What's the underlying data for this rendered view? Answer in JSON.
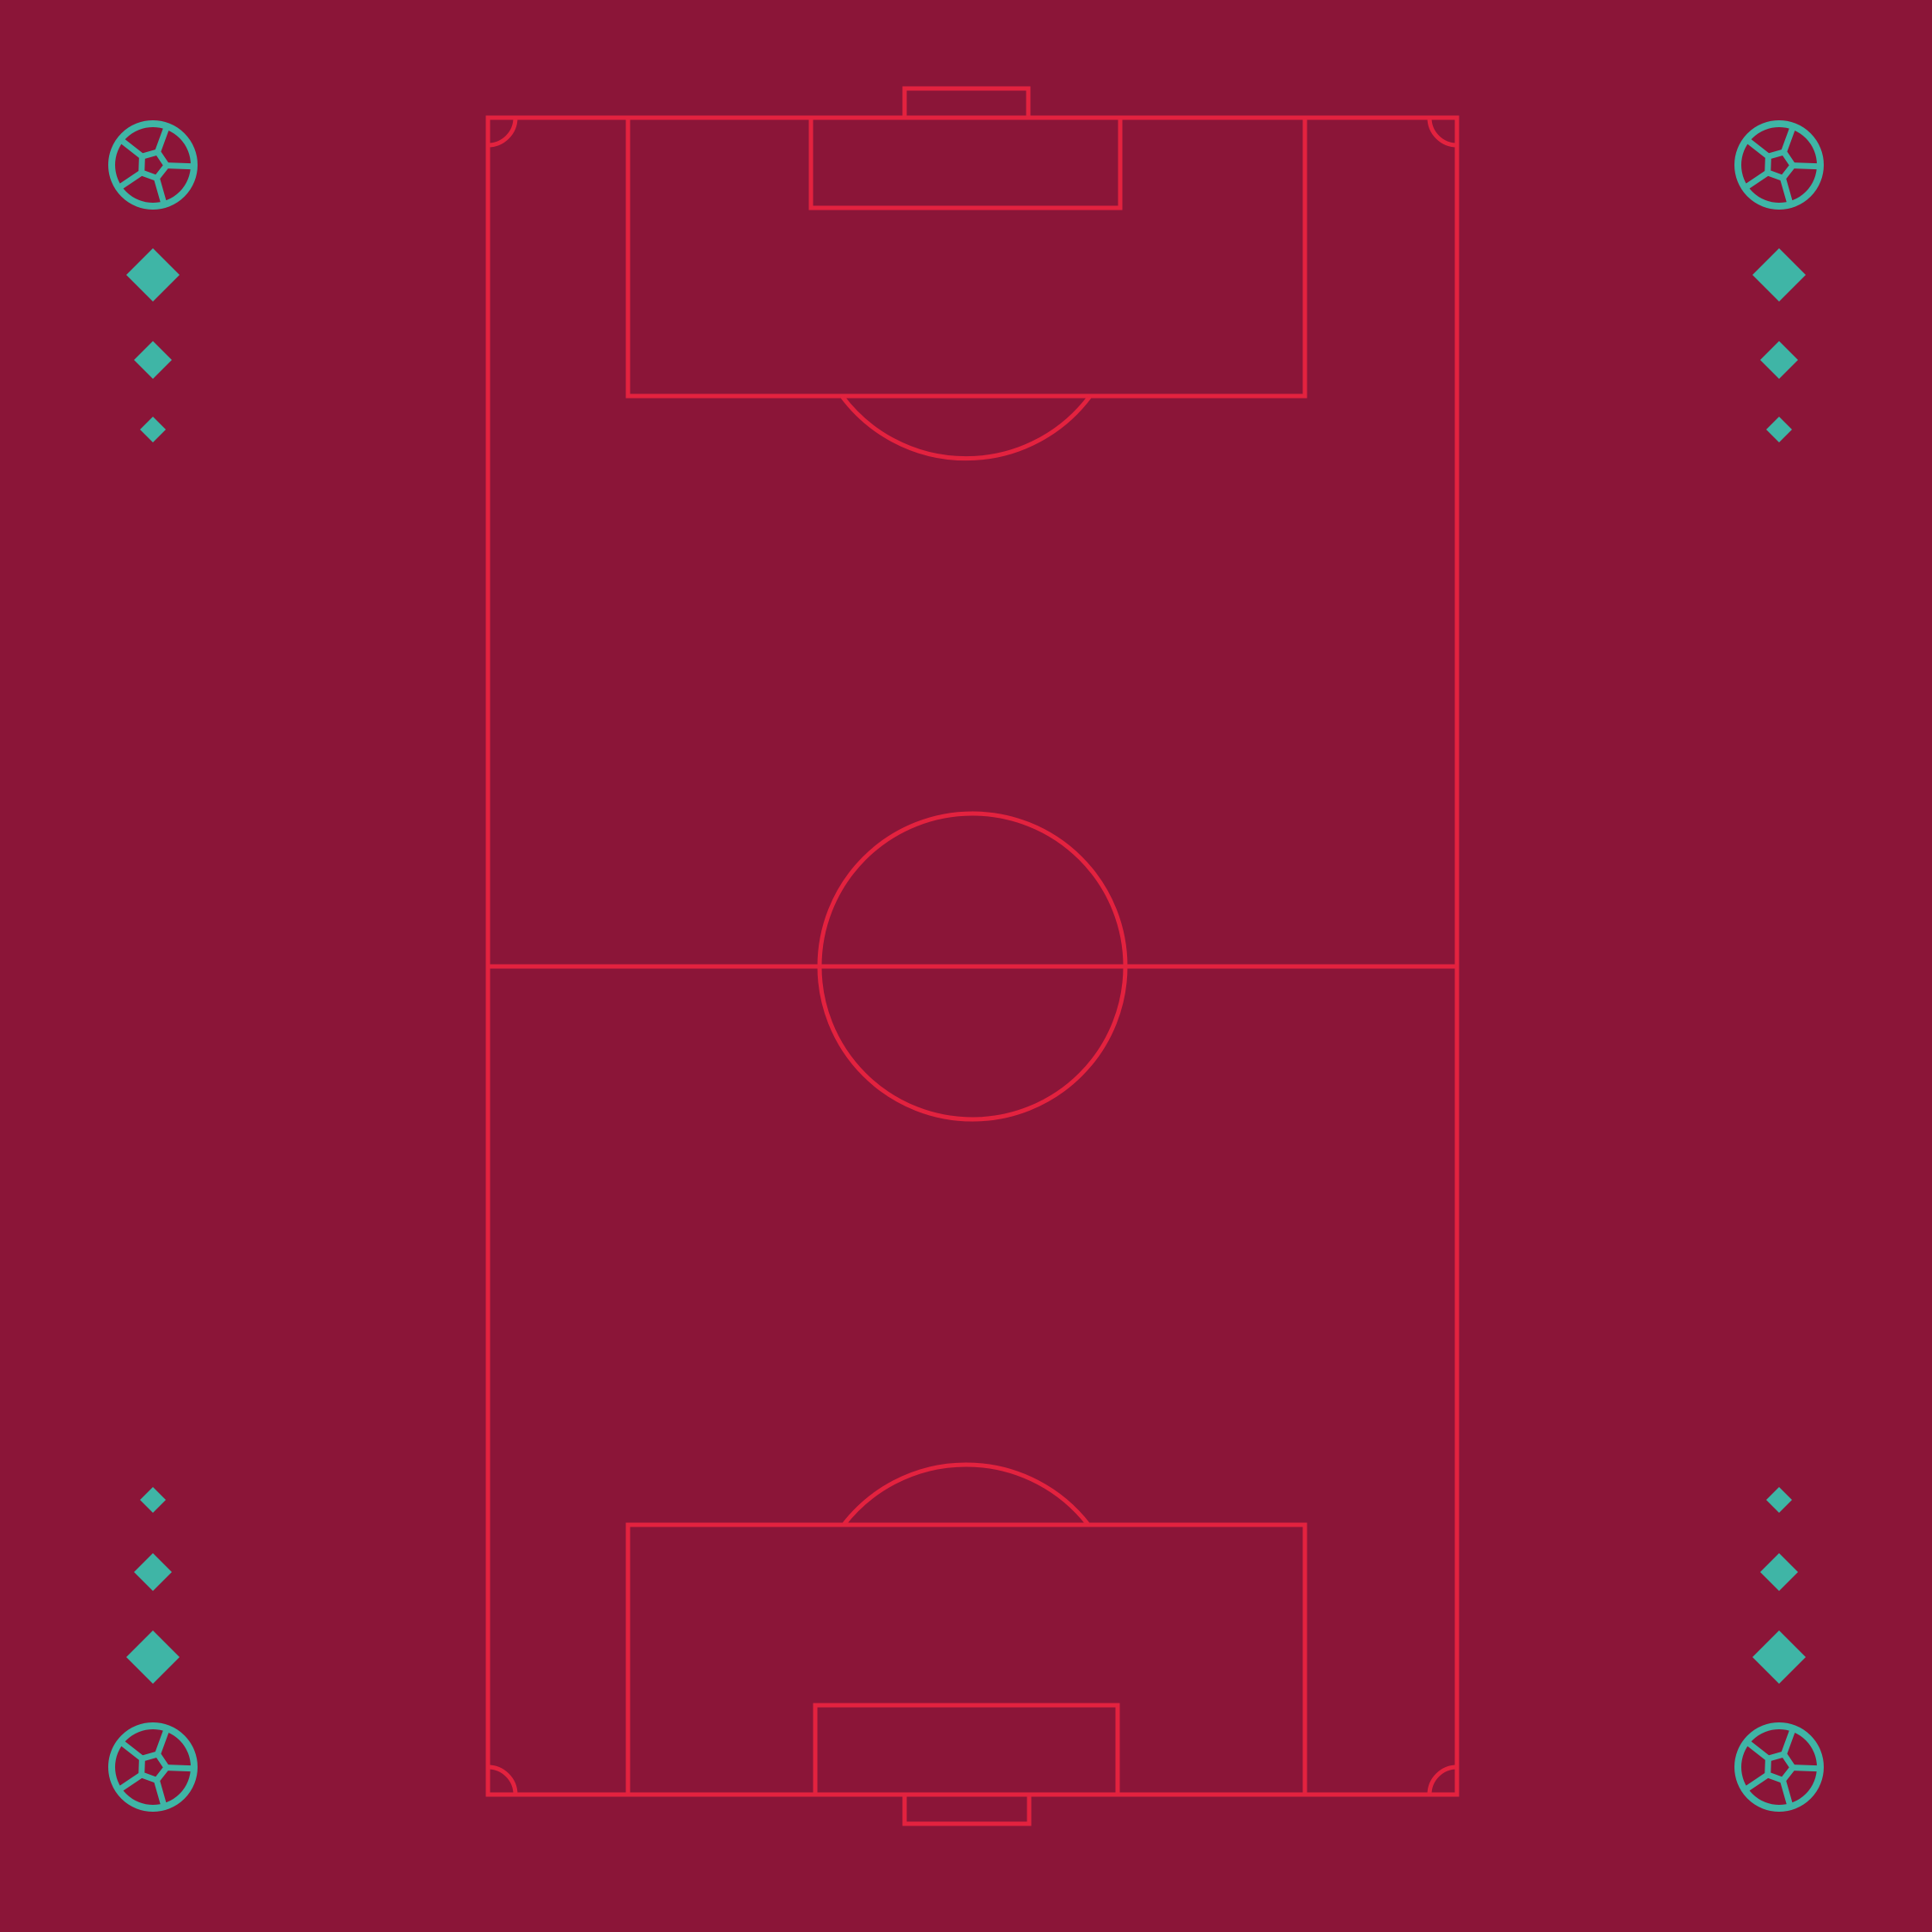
{
  "colors": {
    "background": "#8B1538",
    "pitch_line": "#E3223F",
    "accent": "#3FB5A6"
  },
  "pitch": {
    "orientation": "vertical",
    "markings": [
      "outer-boundary",
      "halfway-line",
      "center-circle",
      "penalty-area-top",
      "goal-area-top",
      "goal-top",
      "penalty-arc-top",
      "penalty-area-bottom",
      "goal-area-bottom",
      "goal-bottom",
      "penalty-arc-bottom",
      "corner-arcs"
    ]
  },
  "decorations": {
    "icon": "soccer-ball-icon",
    "marker": "diamond-icon",
    "corner_groups": [
      "top-left",
      "top-right",
      "bottom-left",
      "bottom-right"
    ],
    "diamonds_per_group": 3
  }
}
